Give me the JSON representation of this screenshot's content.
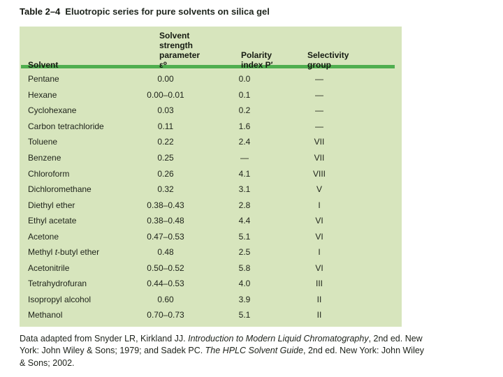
{
  "title": {
    "label": "Table 2–4",
    "text": "Eluotropic series for pure solvents on silica gel"
  },
  "table": {
    "columns": [
      {
        "id": "solvent",
        "label_lines": [
          "Solvent"
        ]
      },
      {
        "id": "strength",
        "label_lines": [
          "Solvent",
          "strength",
          "parameter ε⁰"
        ]
      },
      {
        "id": "polarity",
        "label_lines": [
          "Polarity",
          "index P′"
        ]
      },
      {
        "id": "selectivity",
        "label_lines": [
          "Selectivity",
          "group"
        ]
      }
    ],
    "rows": [
      {
        "solvent": "Pentane",
        "strength": "0.00",
        "polarity": "0.0",
        "selectivity": "—"
      },
      {
        "solvent": "Hexane",
        "strength": "0.00–0.01",
        "polarity": "0.1",
        "selectivity": "—"
      },
      {
        "solvent": "Cyclohexane",
        "strength": "0.03",
        "polarity": "0.2",
        "selectivity": "—"
      },
      {
        "solvent": "Carbon tetrachloride",
        "strength": "0.11",
        "polarity": "1.6",
        "selectivity": "—"
      },
      {
        "solvent": "Toluene",
        "strength": "0.22",
        "polarity": "2.4",
        "selectivity": "VII"
      },
      {
        "solvent": "Benzene",
        "strength": "0.25",
        "polarity": "—",
        "selectivity": "VII"
      },
      {
        "solvent": "Chloroform",
        "strength": "0.26",
        "polarity": "4.1",
        "selectivity": "VIII"
      },
      {
        "solvent": "Dichloromethane",
        "strength": "0.32",
        "polarity": "3.1",
        "selectivity": "V"
      },
      {
        "solvent": "Diethyl ether",
        "strength": "0.38–0.43",
        "polarity": "2.8",
        "selectivity": "I"
      },
      {
        "solvent": "Ethyl acetate",
        "strength": "0.38–0.48",
        "polarity": "4.4",
        "selectivity": "VI"
      },
      {
        "solvent": "Acetone",
        "strength": "0.47–0.53",
        "polarity": "5.1",
        "selectivity": "VI"
      },
      {
        "solvent": "Methyl *t*-butyl ether",
        "strength": "0.48",
        "polarity": "2.5",
        "selectivity": "I"
      },
      {
        "solvent": "Acetonitrile",
        "strength": "0.50–0.52",
        "polarity": "5.8",
        "selectivity": "VI"
      },
      {
        "solvent": "Tetrahydrofuran",
        "strength": "0.44–0.53",
        "polarity": "4.0",
        "selectivity": "III"
      },
      {
        "solvent": "Isopropyl alcohol",
        "strength": "0.60",
        "polarity": "3.9",
        "selectivity": "II"
      },
      {
        "solvent": "Methanol",
        "strength": "0.70–0.73",
        "polarity": "5.1",
        "selectivity": "II"
      }
    ]
  },
  "footer": {
    "text": "Data adapted from Snyder LR, Kirkland JJ. *Introduction to Modern Liquid Chromatography*, 2nd ed. New York: John Wiley & Sons; 1979; and Sadek PC. *The HPLC Solvent Guide*, 2nd ed. New York: John Wiley & Sons; 2002."
  },
  "colors": {
    "table_bg": "#d7e5bd",
    "rule_green": "#4fae4f",
    "text": "#20251c"
  }
}
